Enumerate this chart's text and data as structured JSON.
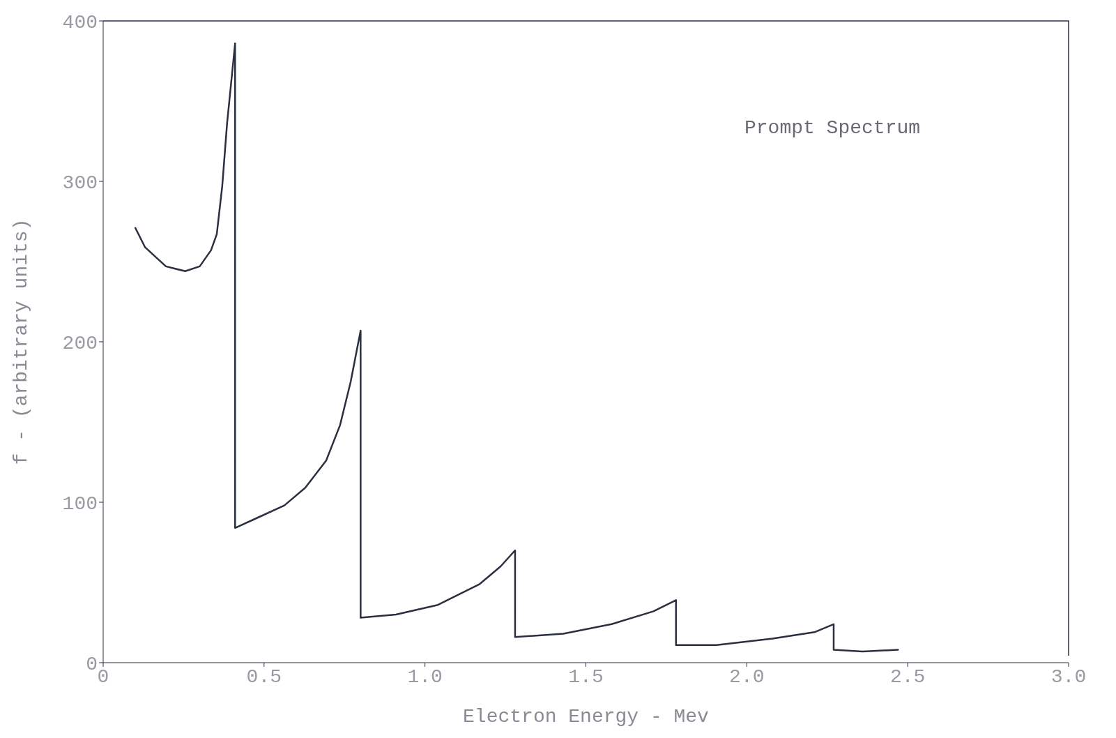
{
  "chart_data": {
    "type": "line",
    "xlabel": "Electron Energy - Mev",
    "ylabel": "f - (arbitrary units)",
    "annotations": [
      "Prompt Spectrum"
    ],
    "x": [
      0.1,
      0.13,
      0.195,
      0.255,
      0.3,
      0.335,
      0.353,
      0.37,
      0.385,
      0.41,
      0.41,
      0.476,
      0.563,
      0.628,
      0.693,
      0.736,
      0.769,
      0.8,
      0.8,
      0.91,
      1.04,
      1.17,
      1.235,
      1.28,
      1.28,
      1.43,
      1.58,
      1.71,
      1.78,
      1.78,
      1.906,
      2.08,
      2.21,
      2.27,
      2.27,
      2.36,
      2.47
    ],
    "series": [
      {
        "color": "#2a3040",
        "values": [
          271,
          259,
          247,
          244,
          247,
          257,
          267,
          297,
          336,
          386,
          84,
          90,
          98,
          109,
          126,
          148,
          175,
          207,
          28,
          30,
          36,
          49,
          60,
          70,
          16,
          18,
          24,
          32,
          39,
          11,
          11,
          15,
          19,
          24,
          8,
          7,
          8
        ]
      }
    ],
    "xlim": [
      0,
      3
    ],
    "xticks": [
      0,
      0.5,
      {
        "value": 1,
        "label": "1.0"
      },
      1.5,
      {
        "value": 2,
        "label": "2.0"
      },
      2.5,
      {
        "value": 3,
        "label": "3.0"
      }
    ],
    "ylim": [
      0,
      400
    ],
    "yticks": [
      0,
      100,
      200,
      300,
      400
    ],
    "marker": "none",
    "line_style": "solid"
  }
}
